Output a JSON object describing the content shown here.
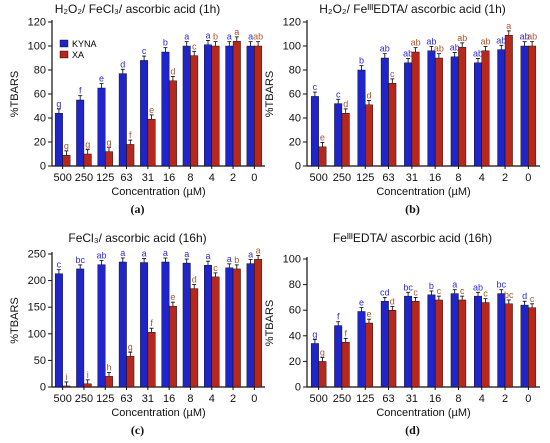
{
  "colors": {
    "kyna": "#1f25c8",
    "xa": "#b5281b",
    "kyna_letter": "#2b2bd6",
    "xa_letter": "#a8552a",
    "axis": "#111111"
  },
  "chart_data": [
    {
      "type": "bar",
      "panel_label": "(a)",
      "title": "H₂O₂/ FeCl₃/ ascorbic acid (1h)",
      "xlabel": "Concentration (µM)",
      "ylabel": "%TBARS",
      "ylim": [
        0,
        120
      ],
      "yticks": [
        0,
        20,
        40,
        60,
        80,
        100,
        120
      ],
      "categories": [
        "500",
        "250",
        "125",
        "63",
        "31",
        "16",
        "8",
        "4",
        "2",
        "0"
      ],
      "legend": {
        "placement": "top-left",
        "entries": [
          "KYNA",
          "XA"
        ]
      },
      "series": [
        {
          "name": "KYNA",
          "values": [
            44,
            55,
            65,
            77,
            88,
            95,
            100,
            101,
            100,
            100
          ],
          "letters": [
            "g",
            "f",
            "e",
            "d",
            "c",
            "b",
            "a",
            "a",
            "a",
            "a"
          ]
        },
        {
          "name": "XA",
          "values": [
            9,
            10,
            12,
            18,
            39,
            71,
            92,
            100,
            104,
            100
          ],
          "letters": [
            "g",
            "g",
            "g",
            "f",
            "e",
            "d",
            "c",
            "b",
            "a",
            "ab"
          ]
        }
      ]
    },
    {
      "type": "bar",
      "panel_label": "(b)",
      "title": "H₂O₂/ FeᴵᴵᴵEDTA/ ascorbic acid (1h)",
      "xlabel": "Concentration (µM)",
      "ylabel": "%TBARS",
      "ylim": [
        0,
        120
      ],
      "yticks": [
        0,
        20,
        40,
        60,
        80,
        100,
        120
      ],
      "categories": [
        "500",
        "250",
        "125",
        "63",
        "31",
        "16",
        "8",
        "4",
        "2",
        "0"
      ],
      "series": [
        {
          "name": "KYNA",
          "values": [
            58,
            52,
            80,
            90,
            86,
            96,
            91,
            86,
            97,
            100
          ],
          "letters": [
            "c",
            "c",
            "b",
            "ab",
            "ab",
            "ab",
            "ab",
            "ab",
            "ab",
            "ab"
          ]
        },
        {
          "name": "XA",
          "values": [
            16,
            44,
            51,
            69,
            95,
            90,
            99,
            96,
            109,
            100
          ],
          "letters": [
            "e",
            "d",
            "d",
            "c",
            "ab",
            "ab",
            "ab",
            "ab",
            "a",
            "ab"
          ]
        }
      ]
    },
    {
      "type": "bar",
      "panel_label": "(c)",
      "title": "FeCl₃/ ascorbic acid (16h)",
      "xlabel": "Concentration (µM)",
      "ylabel": "%TBARS",
      "ylim": [
        0,
        250
      ],
      "yticks": [
        0,
        50,
        100,
        150,
        200,
        250
      ],
      "categories": [
        "500",
        "250",
        "125",
        "63",
        "31",
        "16",
        "8",
        "4",
        "2",
        "0"
      ],
      "series": [
        {
          "name": "KYNA",
          "values": [
            213,
            222,
            230,
            235,
            234,
            235,
            233,
            229,
            224,
            232
          ],
          "letters": [
            "c",
            "bc",
            "ab",
            "a",
            "a",
            "a",
            "a",
            "a",
            "a",
            "a"
          ]
        },
        {
          "name": "XA",
          "values": [
            2,
            6,
            20,
            58,
            103,
            152,
            185,
            207,
            222,
            240
          ],
          "letters": [
            "i",
            "i",
            "h",
            "g",
            "f",
            "e",
            "d",
            "c",
            "b",
            "a"
          ]
        }
      ]
    },
    {
      "type": "bar",
      "panel_label": "(d)",
      "title": "FeᴵᴵᴵEDTA/ ascorbic acid (16h)",
      "xlabel": "Concentration (µM)",
      "ylabel": "%TBARS",
      "ylim": [
        0,
        100
      ],
      "yticks": [
        0,
        20,
        40,
        60,
        80,
        100
      ],
      "categories": [
        "500",
        "250",
        "125",
        "63",
        "31",
        "16",
        "8",
        "4",
        "2",
        "0"
      ],
      "series": [
        {
          "name": "KYNA",
          "values": [
            34,
            48,
            59,
            67,
            71,
            72,
            73,
            71,
            73,
            64
          ],
          "letters": [
            "g",
            "f",
            "e",
            "cd",
            "bc",
            "b",
            "a",
            "ab",
            "bc",
            "d"
          ]
        },
        {
          "name": "XA",
          "values": [
            20,
            35,
            50,
            60,
            67,
            68,
            68,
            66,
            65,
            62
          ],
          "letters": [
            "g",
            "f",
            "e",
            "d",
            "c",
            "c",
            "c",
            "c",
            "bc",
            "c"
          ]
        }
      ]
    }
  ]
}
